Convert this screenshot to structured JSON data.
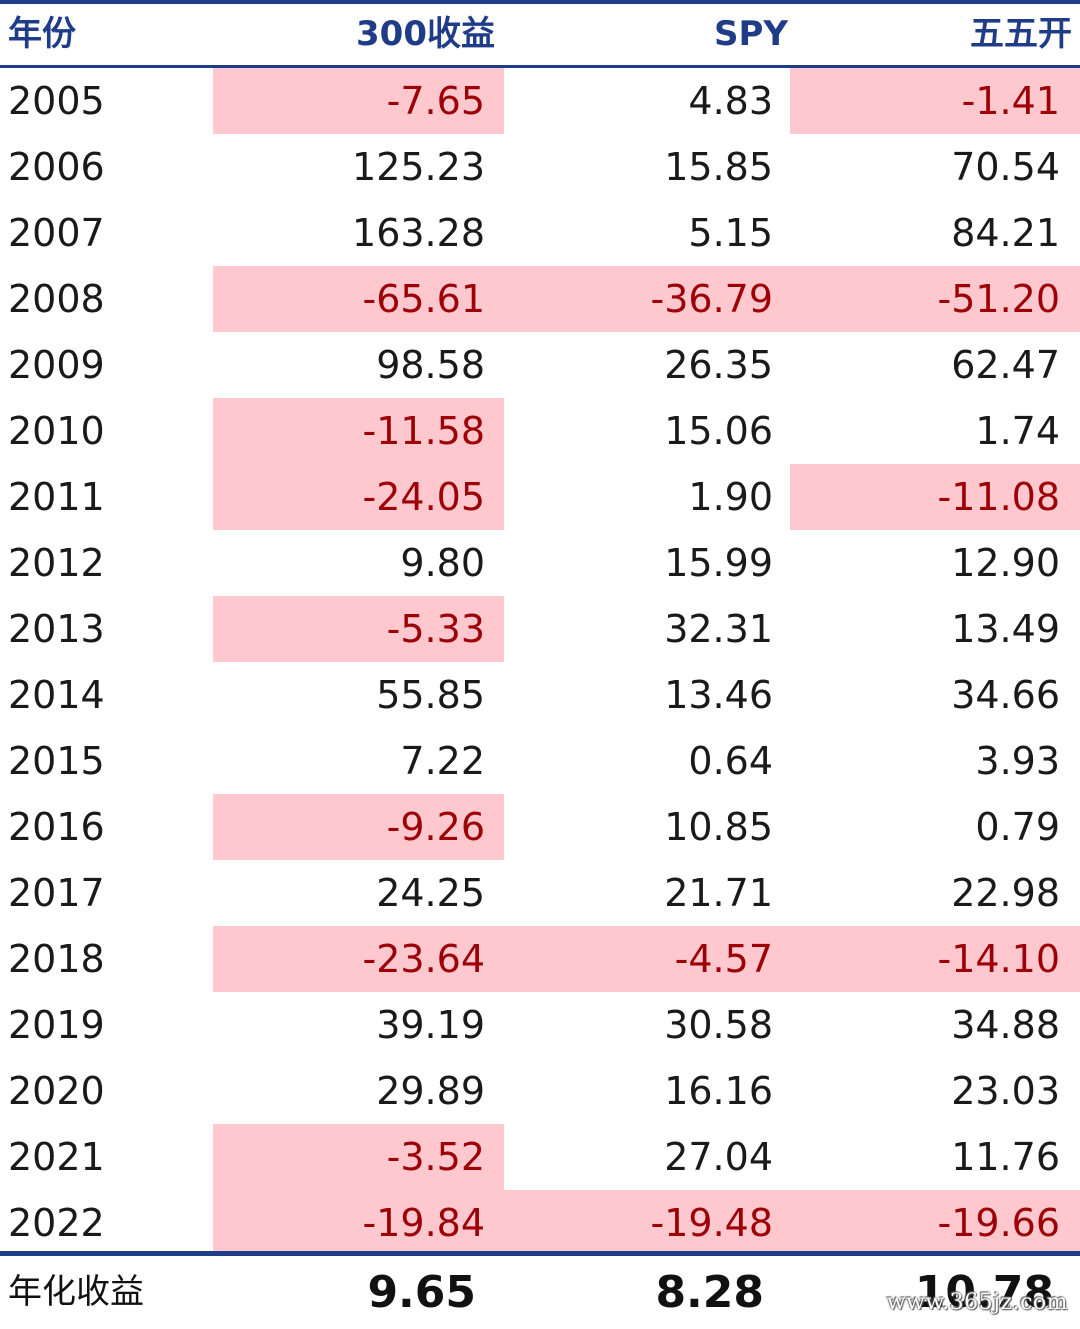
{
  "headers": {
    "year": "年份",
    "csi300": "300收益",
    "spy": "SPY",
    "fifty_fifty": "五五开"
  },
  "rows": [
    {
      "year": "2005",
      "csi300": "-7.65",
      "spy": "4.83",
      "fifty_fifty": "-1.41"
    },
    {
      "year": "2006",
      "csi300": "125.23",
      "spy": "15.85",
      "fifty_fifty": "70.54"
    },
    {
      "year": "2007",
      "csi300": "163.28",
      "spy": "5.15",
      "fifty_fifty": "84.21"
    },
    {
      "year": "2008",
      "csi300": "-65.61",
      "spy": "-36.79",
      "fifty_fifty": "-51.20"
    },
    {
      "year": "2009",
      "csi300": "98.58",
      "spy": "26.35",
      "fifty_fifty": "62.47"
    },
    {
      "year": "2010",
      "csi300": "-11.58",
      "spy": "15.06",
      "fifty_fifty": "1.74"
    },
    {
      "year": "2011",
      "csi300": "-24.05",
      "spy": "1.90",
      "fifty_fifty": "-11.08"
    },
    {
      "year": "2012",
      "csi300": "9.80",
      "spy": "15.99",
      "fifty_fifty": "12.90"
    },
    {
      "year": "2013",
      "csi300": "-5.33",
      "spy": "32.31",
      "fifty_fifty": "13.49"
    },
    {
      "year": "2014",
      "csi300": "55.85",
      "spy": "13.46",
      "fifty_fifty": "34.66"
    },
    {
      "year": "2015",
      "csi300": "7.22",
      "spy": "0.64",
      "fifty_fifty": "3.93"
    },
    {
      "year": "2016",
      "csi300": "-9.26",
      "spy": "10.85",
      "fifty_fifty": "0.79"
    },
    {
      "year": "2017",
      "csi300": "24.25",
      "spy": "21.71",
      "fifty_fifty": "22.98"
    },
    {
      "year": "2018",
      "csi300": "-23.64",
      "spy": "-4.57",
      "fifty_fifty": "-14.10"
    },
    {
      "year": "2019",
      "csi300": "39.19",
      "spy": "30.58",
      "fifty_fifty": "34.88"
    },
    {
      "year": "2020",
      "csi300": "29.89",
      "spy": "16.16",
      "fifty_fifty": "23.03"
    },
    {
      "year": "2021",
      "csi300": "-3.52",
      "spy": "27.04",
      "fifty_fifty": "11.76"
    },
    {
      "year": "2022",
      "csi300": "-19.84",
      "spy": "-19.48",
      "fifty_fifty": "-19.66"
    }
  ],
  "footer": {
    "label": "年化收益",
    "csi300": "9.65",
    "spy": "8.28",
    "fifty_fifty": "10.78"
  },
  "watermark": "www.365jz.com",
  "colors": {
    "rule": "#1f3c88",
    "header_text": "#1f3c88",
    "negative_fill": "#ffc7ce",
    "negative_text": "#9c0006"
  }
}
